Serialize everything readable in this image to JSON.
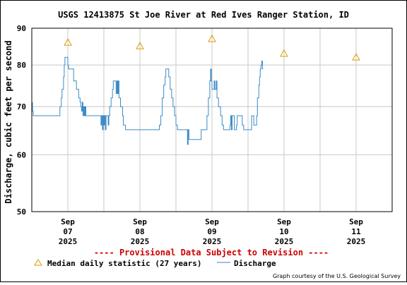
{
  "chart_data": {
    "type": "line",
    "title": "USGS 12413875 St Joe River at Red Ives Ranger Station, ID",
    "ylabel": "Discharge, cubic feet per second",
    "y_scale": "log",
    "ylim": [
      50,
      90
    ],
    "y_ticks": [
      50,
      60,
      70,
      80,
      90
    ],
    "x_ticks": [
      {
        "mon": "Sep",
        "day": "07",
        "year": "2025"
      },
      {
        "mon": "Sep",
        "day": "08",
        "year": "2025"
      },
      {
        "mon": "Sep",
        "day": "09",
        "year": "2025"
      },
      {
        "mon": "Sep",
        "day": "10",
        "year": "2025"
      },
      {
        "mon": "Sep",
        "day": "11",
        "year": "2025"
      }
    ],
    "x_range_days": [
      6.5,
      11.5
    ],
    "grid": true,
    "series": [
      {
        "name": "Discharge",
        "color": "#3b8ac4",
        "points": [
          [
            6.5,
            71
          ],
          [
            6.51,
            69
          ],
          [
            6.52,
            68
          ],
          [
            6.6,
            68
          ],
          [
            6.7,
            68
          ],
          [
            6.8,
            68
          ],
          [
            6.88,
            68
          ],
          [
            6.89,
            70
          ],
          [
            6.91,
            72
          ],
          [
            6.92,
            74
          ],
          [
            6.94,
            77
          ],
          [
            6.95,
            80
          ],
          [
            6.96,
            82
          ],
          [
            6.99,
            82
          ],
          [
            7.0,
            80
          ],
          [
            7.01,
            79
          ],
          [
            7.06,
            79
          ],
          [
            7.08,
            76
          ],
          [
            7.12,
            74
          ],
          [
            7.15,
            72
          ],
          [
            7.17,
            71
          ],
          [
            7.18,
            70
          ],
          [
            7.19,
            69
          ],
          [
            7.2,
            71
          ],
          [
            7.21,
            68
          ],
          [
            7.22,
            70
          ],
          [
            7.23,
            68
          ],
          [
            7.24,
            70
          ],
          [
            7.25,
            68
          ],
          [
            7.3,
            68
          ],
          [
            7.4,
            68
          ],
          [
            7.45,
            68
          ],
          [
            7.46,
            66
          ],
          [
            7.47,
            68
          ],
          [
            7.48,
            65
          ],
          [
            7.49,
            68
          ],
          [
            7.5,
            66
          ],
          [
            7.51,
            68
          ],
          [
            7.52,
            65
          ],
          [
            7.53,
            68
          ],
          [
            7.55,
            68
          ],
          [
            7.56,
            66
          ],
          [
            7.57,
            68
          ],
          [
            7.58,
            70
          ],
          [
            7.6,
            72
          ],
          [
            7.62,
            74
          ],
          [
            7.63,
            76
          ],
          [
            7.66,
            76
          ],
          [
            7.67,
            73
          ],
          [
            7.68,
            76
          ],
          [
            7.69,
            73
          ],
          [
            7.7,
            76
          ],
          [
            7.71,
            72
          ],
          [
            7.73,
            70
          ],
          [
            7.76,
            68
          ],
          [
            7.77,
            66
          ],
          [
            7.79,
            66
          ],
          [
            7.8,
            65
          ],
          [
            7.9,
            65
          ],
          [
            8.0,
            65
          ],
          [
            8.1,
            65
          ],
          [
            8.2,
            65
          ],
          [
            8.25,
            65
          ],
          [
            8.27,
            66
          ],
          [
            8.29,
            68
          ],
          [
            8.31,
            72
          ],
          [
            8.33,
            75
          ],
          [
            8.35,
            77
          ],
          [
            8.36,
            79
          ],
          [
            8.39,
            79
          ],
          [
            8.4,
            77
          ],
          [
            8.42,
            74
          ],
          [
            8.44,
            72
          ],
          [
            8.46,
            70
          ],
          [
            8.48,
            68
          ],
          [
            8.5,
            66
          ],
          [
            8.52,
            65
          ],
          [
            8.6,
            65
          ],
          [
            8.65,
            65
          ],
          [
            8.66,
            62
          ],
          [
            8.67,
            65
          ],
          [
            8.68,
            63
          ],
          [
            8.7,
            63
          ],
          [
            8.8,
            63
          ],
          [
            8.84,
            63
          ],
          [
            8.85,
            65
          ],
          [
            8.9,
            65
          ],
          [
            8.93,
            68
          ],
          [
            8.95,
            72
          ],
          [
            8.97,
            76
          ],
          [
            8.98,
            79
          ],
          [
            8.99,
            76
          ],
          [
            9.0,
            74
          ],
          [
            9.03,
            76
          ],
          [
            9.04,
            74
          ],
          [
            9.06,
            76
          ],
          [
            9.07,
            72
          ],
          [
            9.09,
            70
          ],
          [
            9.12,
            68
          ],
          [
            9.14,
            66
          ],
          [
            9.16,
            65
          ],
          [
            9.2,
            65
          ],
          [
            9.25,
            66
          ],
          [
            9.26,
            68
          ],
          [
            9.27,
            65
          ],
          [
            9.28,
            68
          ],
          [
            9.3,
            68
          ],
          [
            9.31,
            65
          ],
          [
            9.33,
            65
          ],
          [
            9.34,
            66
          ],
          [
            9.35,
            68
          ],
          [
            9.4,
            68
          ],
          [
            9.42,
            66
          ],
          [
            9.44,
            65
          ],
          [
            9.5,
            65
          ],
          [
            9.53,
            65
          ],
          [
            9.55,
            68
          ],
          [
            9.57,
            68
          ],
          [
            9.58,
            66
          ],
          [
            9.6,
            66
          ],
          [
            9.62,
            68
          ],
          [
            9.63,
            72
          ],
          [
            9.65,
            75
          ],
          [
            9.66,
            77
          ],
          [
            9.67,
            79
          ],
          [
            9.68,
            80
          ],
          [
            9.69,
            81
          ],
          [
            9.7,
            79
          ],
          [
            9.71,
            79
          ]
        ]
      }
    ],
    "median_series": {
      "name": "Median daily statistic (27 years)",
      "color": "#e09a00",
      "points": [
        [
          7.0,
          86
        ],
        [
          8.0,
          85
        ],
        [
          9.0,
          87
        ],
        [
          10.0,
          83
        ],
        [
          11.0,
          82
        ]
      ]
    }
  },
  "warning_text": "---- Provisional Data Subject to Revision ----",
  "legend": {
    "median_label": "Median daily statistic (27 years)",
    "discharge_label": "Discharge"
  },
  "credit": "Graph courtesy of the U.S. Geological Survey"
}
